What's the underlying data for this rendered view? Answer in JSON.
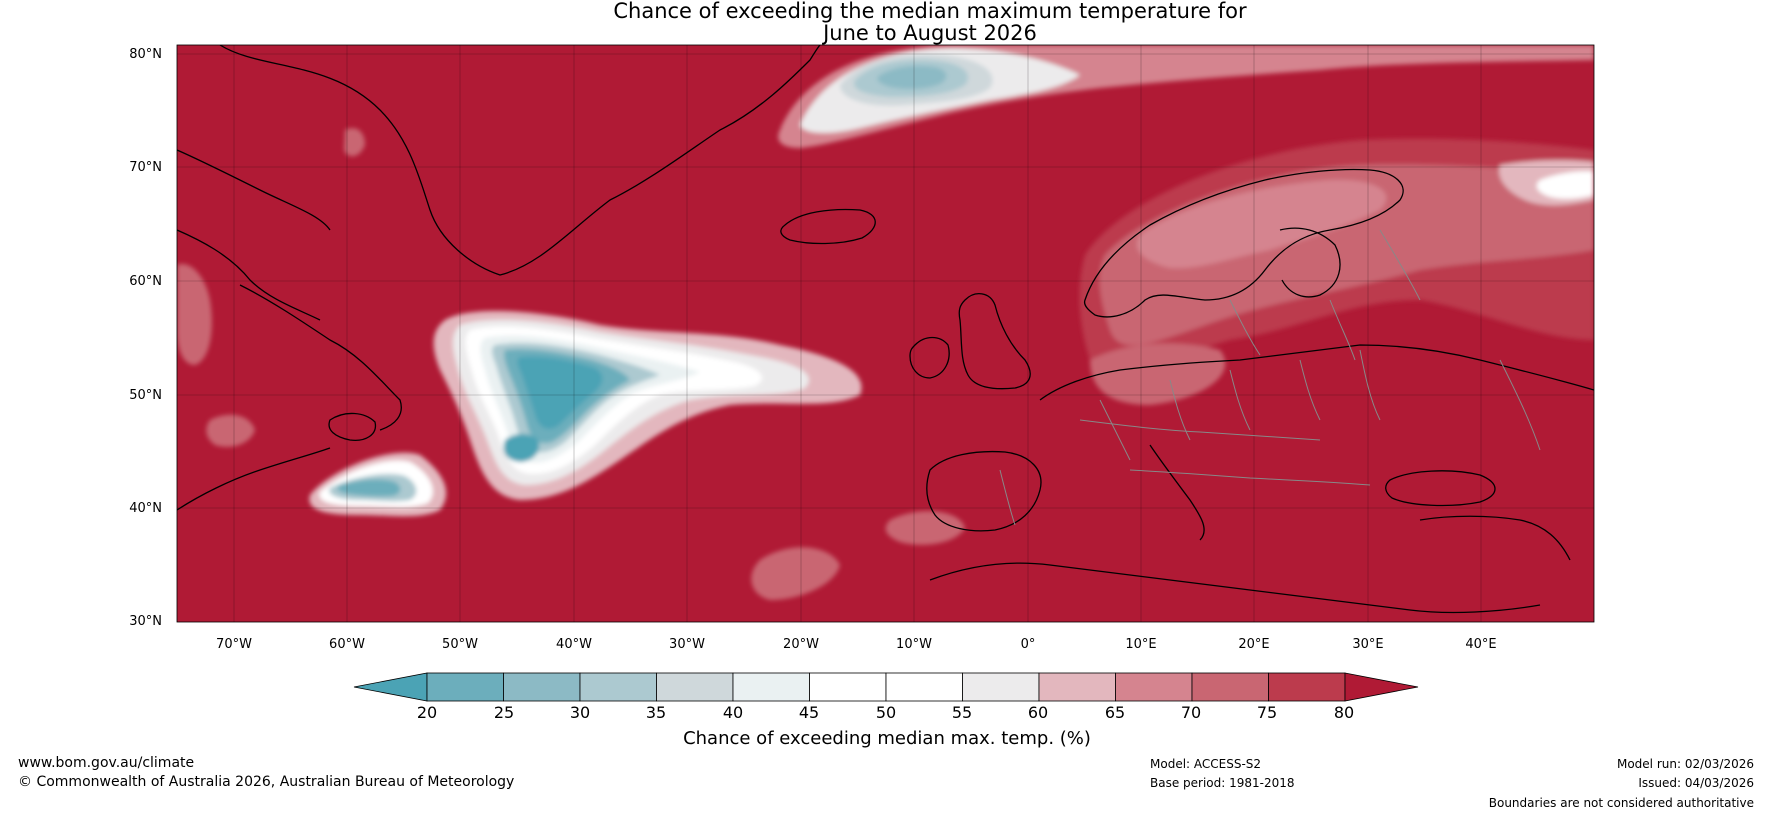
{
  "title": {
    "line1": "Chance of exceeding the median maximum temperature for",
    "line2": "June to August 2026"
  },
  "map": {
    "latitudes": [
      "80°N",
      "70°N",
      "60°N",
      "50°N",
      "40°N",
      "30°N"
    ],
    "longitudes": [
      "70°W",
      "60°W",
      "50°W",
      "40°W",
      "30°W",
      "20°W",
      "10°W",
      "0°",
      "10°E",
      "20°E",
      "30°E",
      "40°E"
    ],
    "colors": {
      "background": "#b01a35",
      "coast": "#000000",
      "border": "#888888",
      "grid": "#000000"
    }
  },
  "colorbar": {
    "ticks": [
      "20",
      "25",
      "30",
      "35",
      "40",
      "45",
      "50",
      "55",
      "60",
      "65",
      "70",
      "75",
      "80"
    ],
    "colors": [
      "#4ba3b5",
      "#6caebc",
      "#8cbac5",
      "#acc9d0",
      "#cfd8db",
      "#eaf1f2",
      "#ffffff",
      "#ffffff",
      "#ecebec",
      "#e3b7be",
      "#d5848f",
      "#c96672",
      "#bc3b4d",
      "#b01a35"
    ],
    "label": "Chance of exceeding median max. temp. (%)"
  },
  "footer": {
    "website": "www.bom.gov.au/climate",
    "copyright": "© Commonwealth of Australia 2026, Australian Bureau of Meteorology",
    "model": "Model: ACCESS-S2",
    "base_period": "Base period: 1981-2018",
    "model_run": "Model run: 02/03/2026",
    "issued": "Issued: 04/03/2026",
    "disclaimer": "Boundaries are not considered authoritative"
  }
}
